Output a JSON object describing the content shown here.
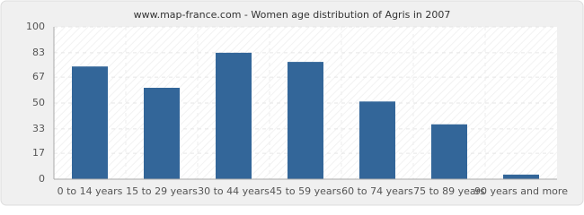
{
  "chart_data": {
    "type": "bar",
    "title": "www.map-france.com - Women age distribution of Agris in 2007",
    "categories": [
      "0 to 14 years",
      "15 to 29 years",
      "30 to 44 years",
      "45 to 59 years",
      "60 to 74 years",
      "75 to 89 years",
      "90 years and more"
    ],
    "values": [
      74,
      60,
      83,
      77,
      51,
      36,
      3
    ],
    "color": "#336699",
    "ylim": [
      0,
      100
    ],
    "yticks": [
      0,
      17,
      33,
      50,
      67,
      83,
      100
    ],
    "grid": true
  }
}
